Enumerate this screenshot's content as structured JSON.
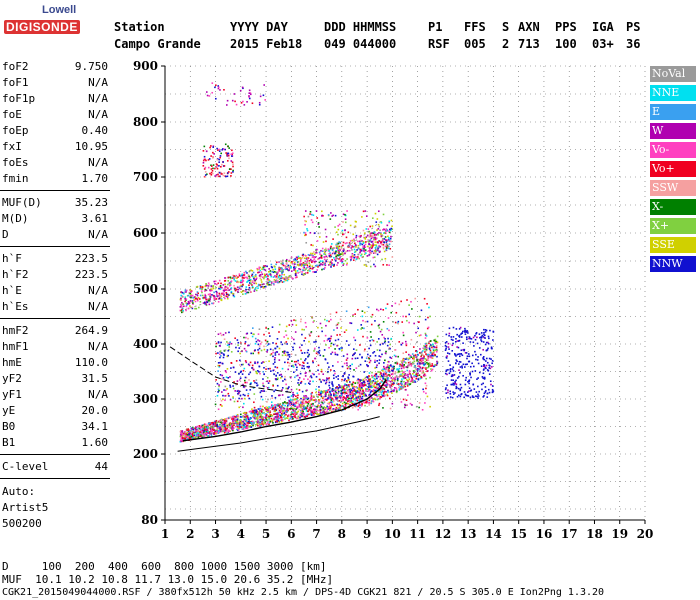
{
  "logo": {
    "lowell": "Lowell",
    "digisonde": "DIGISONDE"
  },
  "header": {
    "row1": [
      "Station",
      "YYYY DAY",
      "DDD HHMMSS",
      "P1",
      "FFS",
      "S",
      "AXN",
      "PPS",
      "IGA",
      "PS"
    ],
    "row2": [
      "Campo Grande",
      "2015 Feb18",
      "049 044000",
      "RSF",
      "005",
      "2",
      "713",
      "100",
      "03+",
      "36"
    ]
  },
  "params": [
    {
      "label": "foF2",
      "value": "9.750"
    },
    {
      "label": "foF1",
      "value": "N/A"
    },
    {
      "label": "foF1p",
      "value": "N/A"
    },
    {
      "label": "foE",
      "value": "N/A"
    },
    {
      "label": "foEp",
      "value": "0.40"
    },
    {
      "label": "fxI",
      "value": "10.95"
    },
    {
      "label": "foEs",
      "value": "N/A"
    },
    {
      "label": "fmin",
      "value": "1.70"
    },
    {
      "label": "MUF(D)",
      "value": "35.23"
    },
    {
      "label": "M(D)",
      "value": "3.61"
    },
    {
      "label": "D",
      "value": "N/A"
    },
    {
      "label": "h`F",
      "value": "223.5"
    },
    {
      "label": "h`F2",
      "value": "223.5"
    },
    {
      "label": "h`E",
      "value": "N/A"
    },
    {
      "label": "h`Es",
      "value": "N/A"
    },
    {
      "label": "hmF2",
      "value": "264.9"
    },
    {
      "label": "hmF1",
      "value": "N/A"
    },
    {
      "label": "hmE",
      "value": "110.0"
    },
    {
      "label": "yF2",
      "value": "31.5"
    },
    {
      "label": "yF1",
      "value": "N/A"
    },
    {
      "label": "yE",
      "value": "20.0"
    },
    {
      "label": "B0",
      "value": "34.1"
    },
    {
      "label": "B1",
      "value": "1.60"
    },
    {
      "label": "C-level",
      "value": "44"
    }
  ],
  "auto": {
    "line1": "Auto:",
    "line2": "Artist5",
    "line3": "500200"
  },
  "legend": [
    {
      "label": "NoVal",
      "color": "#9a9a9a"
    },
    {
      "label": "NNE",
      "color": "#00e0f0"
    },
    {
      "label": "E",
      "color": "#3aa0f0"
    },
    {
      "label": "W",
      "color": "#b000b0"
    },
    {
      "label": "Vo-",
      "color": "#ff40c0"
    },
    {
      "label": "Vo+",
      "color": "#f00020"
    },
    {
      "label": "SSW",
      "color": "#f5a0a0"
    },
    {
      "label": "X-",
      "color": "#008000"
    },
    {
      "label": "X+",
      "color": "#80d040"
    },
    {
      "label": "SSE",
      "color": "#d0d000"
    },
    {
      "label": "NNW",
      "color": "#1010d0"
    }
  ],
  "footer": {
    "line1": "D     100  200  400  600  800 1000 1500 3000 [km]",
    "line2": "MUF  10.1 10.2 10.8 11.7 13.0 15.0 20.6 35.2 [MHz]",
    "line3": "CGK21_2015049044000.RSF / 380fx512h 50 kHz 2.5 km / DPS-4D CGK21 821 / 20.5 S 305.0 E Ion2Png 1.3.20"
  },
  "chart_data": {
    "type": "scatter",
    "title": "",
    "xlabel": "",
    "ylabel": "",
    "xlim": [
      1,
      20
    ],
    "ylim": [
      80,
      900
    ],
    "x_ticks": [
      1,
      2,
      3,
      4,
      5,
      6,
      7,
      8,
      9,
      10,
      11,
      12,
      13,
      14,
      15,
      16,
      17,
      18,
      19,
      20
    ],
    "y_ticks": [
      80,
      200,
      300,
      400,
      500,
      600,
      700,
      800,
      900
    ],
    "grid": true,
    "traces": [
      {
        "name": "trace-F-O",
        "frequency": [
          1.7,
          3,
          4,
          5,
          6,
          7,
          8,
          8.5,
          9,
          9.5,
          9.75
        ],
        "height": [
          224,
          232,
          240,
          250,
          258,
          268,
          280,
          290,
          300,
          318,
          335
        ]
      },
      {
        "name": "trace-F-X",
        "frequency": [
          1.5,
          3,
          4,
          5,
          6,
          7,
          8,
          9,
          9.5
        ],
        "height": [
          205,
          214,
          220,
          228,
          235,
          242,
          252,
          262,
          268
        ]
      },
      {
        "name": "profile-dashed",
        "frequency": [
          1.2,
          2,
          3,
          4,
          5,
          6
        ],
        "height": [
          395,
          370,
          340,
          325,
          318,
          312
        ]
      },
      {
        "name": "multihop-2F",
        "frequency": [
          1.6,
          3,
          5,
          7,
          9,
          9.5
        ],
        "height": [
          460,
          480,
          510,
          540,
          600,
          620
        ]
      }
    ]
  }
}
